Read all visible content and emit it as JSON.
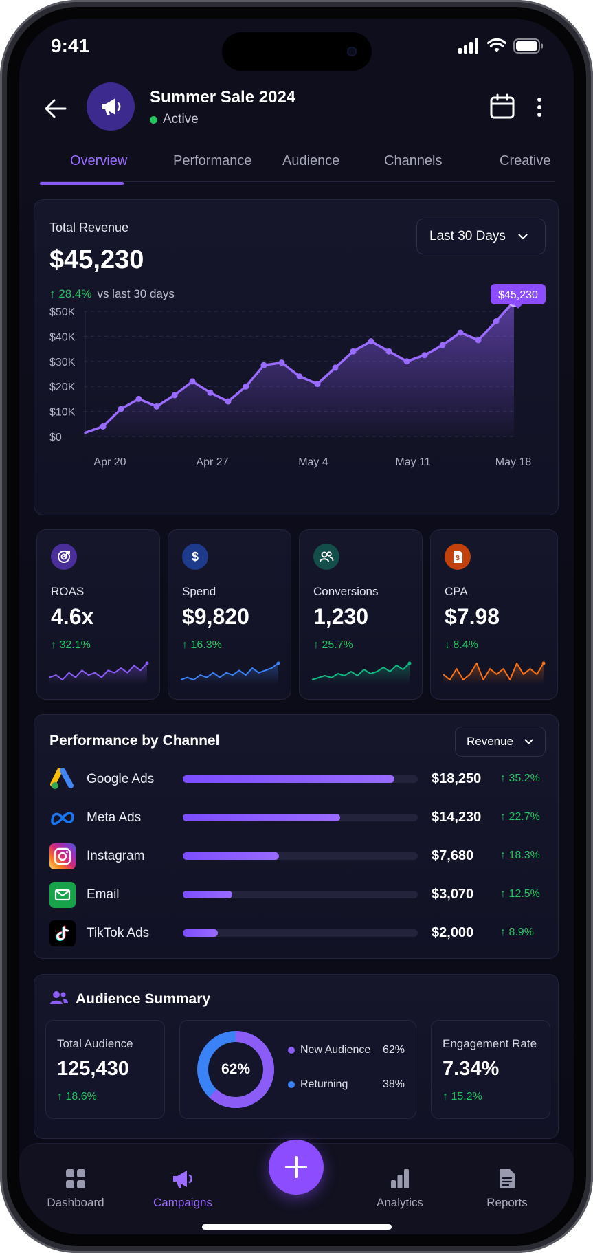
{
  "status": {
    "time": "9:41"
  },
  "header": {
    "title": "Summer Sale 2024",
    "status": "Active"
  },
  "tabs": [
    {
      "label": "Overview",
      "active": true
    },
    {
      "label": "Performance"
    },
    {
      "label": "Audience"
    },
    {
      "label": "Channels"
    },
    {
      "label": "Creative"
    }
  ],
  "revenue": {
    "label": "Total Revenue",
    "value": "$45,230",
    "change": "28.4%",
    "change_suffix": "vs last 30 days",
    "range": "Last 30 Days",
    "tooltip": "$45,230"
  },
  "chart_data": {
    "type": "area",
    "y_ticks": [
      "$50K",
      "$40K",
      "$30K",
      "$20K",
      "$10K",
      "$0"
    ],
    "x_ticks": [
      "Apr 20",
      "Apr 27",
      "May 4",
      "May 11",
      "May 18"
    ],
    "ylim": [
      0,
      50000
    ],
    "values": [
      1500,
      4000,
      11000,
      15000,
      12000,
      16500,
      22000,
      17500,
      14000,
      20000,
      28500,
      29500,
      24000,
      21000,
      27500,
      34000,
      38000,
      34000,
      30000,
      32500,
      36500,
      41500,
      38500,
      46000,
      54000
    ],
    "grid": true,
    "color": "#8b5cf6"
  },
  "kpis": [
    {
      "label": "ROAS",
      "value": "4.6x",
      "change": "32.1%",
      "direction": "up",
      "icon": "target-icon",
      "icon_bg": "#4a2f9a",
      "color": "#8b5cf6",
      "spark": [
        3,
        4,
        2,
        5,
        3,
        6,
        4,
        5,
        3,
        6,
        5,
        7,
        5,
        8,
        6,
        9
      ]
    },
    {
      "label": "Spend",
      "value": "$9,820",
      "change": "16.3%",
      "direction": "up",
      "icon": "dollar-icon",
      "icon_bg": "#1e3a8a",
      "color": "#3b82f6",
      "spark": [
        2,
        3,
        2,
        4,
        3,
        5,
        3,
        5,
        4,
        6,
        4,
        7,
        5,
        6,
        7,
        9
      ]
    },
    {
      "label": "Conversions",
      "value": "1,230",
      "change": "25.7%",
      "direction": "up",
      "icon": "users-icon",
      "icon_bg": "#134e4a",
      "color": "#10b981",
      "spark": [
        2,
        3,
        4,
        3,
        5,
        4,
        6,
        4,
        7,
        5,
        6,
        8,
        6,
        9,
        7,
        10
      ]
    },
    {
      "label": "CPA",
      "value": "$7.98",
      "change": "8.4%",
      "direction": "down",
      "icon": "receipt-icon",
      "icon_bg": "#c2410c",
      "color": "#f97316",
      "spark": [
        4,
        3,
        5,
        3,
        4,
        6,
        3,
        5,
        4,
        5,
        3,
        6,
        4,
        5,
        4,
        6
      ]
    }
  ],
  "channels": {
    "title": "Performance by Channel",
    "metric": "Revenue",
    "rows": [
      {
        "name": "Google Ads",
        "value": "$18,250",
        "change": "35.2%",
        "share": 0.9,
        "icon": "google-ads-icon"
      },
      {
        "name": "Meta Ads",
        "value": "$14,230",
        "change": "22.7%",
        "share": 0.67,
        "icon": "meta-icon"
      },
      {
        "name": "Instagram",
        "value": "$7,680",
        "change": "18.3%",
        "share": 0.41,
        "icon": "instagram-icon"
      },
      {
        "name": "Email",
        "value": "$3,070",
        "change": "12.5%",
        "share": 0.21,
        "icon": "email-icon"
      },
      {
        "name": "TikTok Ads",
        "value": "$2,000",
        "change": "8.9%",
        "share": 0.15,
        "icon": "tiktok-icon"
      }
    ]
  },
  "audience": {
    "title": "Audience Summary",
    "total_label": "Total Audience",
    "total_value": "125,430",
    "total_change": "18.6%",
    "donut_center": "62%",
    "new_label": "New Audience",
    "new_pct": "62%",
    "new_share": 0.62,
    "returning_label": "Returning",
    "returning_pct": "38%",
    "engagement_label": "Engagement Rate",
    "engagement_value": "7.34%",
    "engagement_change": "15.2%",
    "colors": {
      "new": "#8b5cf6",
      "returning": "#3b82f6"
    }
  },
  "nav": {
    "items": [
      {
        "label": "Dashboard",
        "icon": "grid-icon"
      },
      {
        "label": "Campaigns",
        "icon": "megaphone-icon",
        "active": true
      },
      {
        "label": "Analytics",
        "icon": "bar-chart-icon"
      },
      {
        "label": "Reports",
        "icon": "document-icon"
      }
    ]
  }
}
